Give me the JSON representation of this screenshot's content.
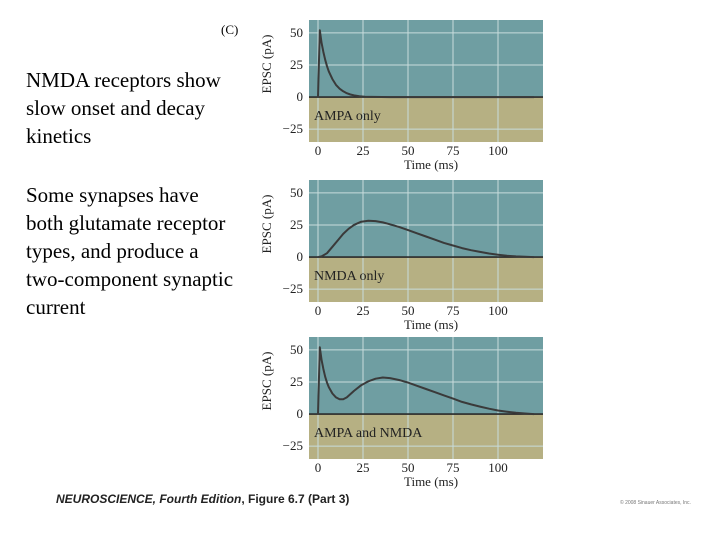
{
  "text": {
    "panel_label": "(C)",
    "paragraph_1": "NMDA receptors show slow onset and decay kinetics",
    "paragraph_2": "Some synapses have both glutamate receptor types, and produce a two-component synaptic current"
  },
  "caption": {
    "title": "NEUROSCIENCE, Fourth Edition",
    "rest": ", Figure 6.7 (Part 3)"
  },
  "copyright": "© 2008 Sinauer Associates, Inc.",
  "colors": {
    "upper_bg": "#6f9ea2",
    "lower_bg": "#b6b083",
    "trace": "#3a3a3a",
    "grid": "#c8dcdc"
  },
  "chart_data": [
    {
      "type": "line",
      "title": "AMPA only",
      "xlabel": "Time (ms)",
      "ylabel": "EPSC (pA)",
      "xlim": [
        -5,
        125
      ],
      "ylim": [
        -35,
        60
      ],
      "xticks": [
        "0",
        "25",
        "50",
        "75",
        "100"
      ],
      "yticks": [
        "50",
        "25",
        "0",
        "−25"
      ],
      "series": [
        {
          "name": "AMPA only",
          "x": [
            0,
            1,
            2,
            3,
            4,
            5,
            6,
            8,
            10,
            12,
            14,
            16,
            18,
            20,
            23,
            26,
            30,
            40,
            60,
            120
          ],
          "y": [
            0,
            52,
            42,
            35,
            29,
            24,
            20,
            14,
            9.5,
            6.5,
            4.5,
            3,
            2,
            1.3,
            0.7,
            0.3,
            0.1,
            0,
            0,
            0
          ]
        }
      ]
    },
    {
      "type": "line",
      "title": "NMDA only",
      "xlabel": "Time (ms)",
      "ylabel": "EPSC (pA)",
      "xlim": [
        -5,
        125
      ],
      "ylim": [
        -35,
        60
      ],
      "xticks": [
        "0",
        "25",
        "50",
        "75",
        "100"
      ],
      "yticks": [
        "50",
        "25",
        "0",
        "−25"
      ],
      "series": [
        {
          "name": "NMDA only",
          "x": [
            0,
            2,
            5,
            8,
            11,
            14,
            17,
            20,
            24,
            28,
            32,
            36,
            40,
            45,
            50,
            55,
            60,
            65,
            70,
            75,
            80,
            85,
            90,
            95,
            100,
            105,
            110,
            115,
            120
          ],
          "y": [
            0,
            0.5,
            3,
            8,
            13,
            18,
            22,
            25,
            27.5,
            28.3,
            28,
            27,
            25.5,
            23.5,
            21,
            18.5,
            16,
            13.5,
            11,
            9,
            7,
            5.3,
            4,
            2.8,
            1.8,
            1,
            0.5,
            0.2,
            0
          ]
        }
      ]
    },
    {
      "type": "line",
      "title": "AMPA and NMDA",
      "xlabel": "Time (ms)",
      "ylabel": "EPSC (pA)",
      "xlim": [
        -5,
        125
      ],
      "ylim": [
        -35,
        60
      ],
      "xticks": [
        "0",
        "25",
        "50",
        "75",
        "100"
      ],
      "yticks": [
        "50",
        "25",
        "0",
        "−25"
      ],
      "series": [
        {
          "name": "AMPA and NMDA",
          "x": [
            0,
            1,
            2,
            3,
            4,
            5,
            6,
            8,
            10,
            12,
            14,
            16,
            18,
            20,
            24,
            28,
            32,
            36,
            40,
            45,
            50,
            55,
            60,
            65,
            70,
            75,
            80,
            85,
            90,
            95,
            100,
            105,
            110,
            115,
            120
          ],
          "y": [
            0,
            52,
            42,
            35,
            29,
            24.5,
            21,
            16,
            13,
            11.5,
            11.5,
            13,
            15.5,
            18,
            22.5,
            25.5,
            27.5,
            28.5,
            28,
            26.5,
            24.5,
            22,
            19.5,
            17,
            14.5,
            12,
            9.5,
            7.5,
            5.8,
            4.2,
            2.8,
            1.8,
            1,
            0.4,
            0
          ]
        }
      ]
    }
  ]
}
